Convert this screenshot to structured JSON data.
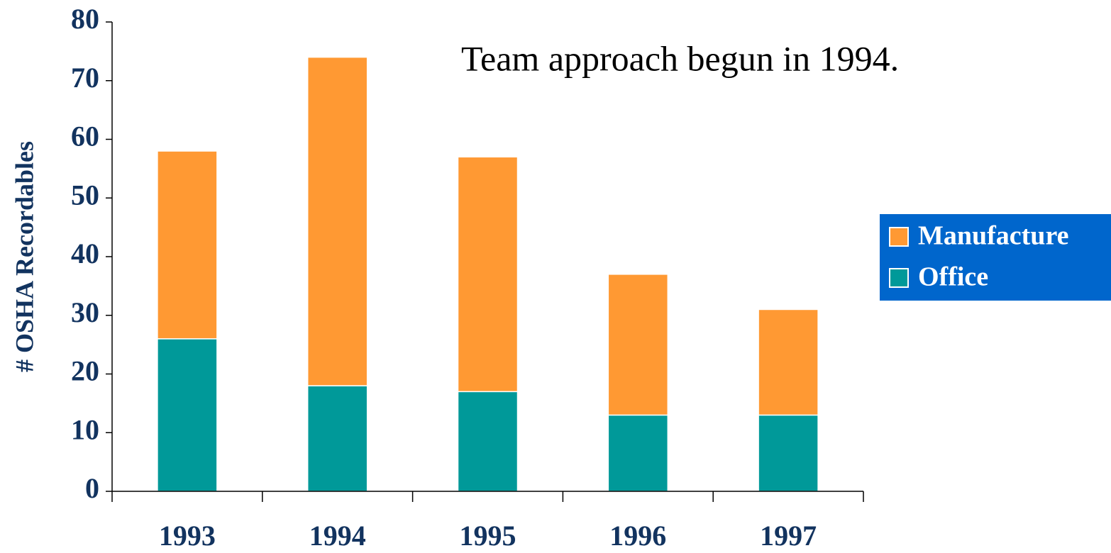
{
  "chart_data": {
    "type": "stacked_bar",
    "annotation": "Team approach begun in 1994.",
    "y_label": "# OSHA Recordables",
    "categories": [
      "1993",
      "1994",
      "1995",
      "1996",
      "1997"
    ],
    "series": [
      {
        "name": "Office",
        "color": "#009999",
        "values": [
          26,
          18,
          17,
          13,
          13
        ]
      },
      {
        "name": "Manufacture",
        "color": "#ff9933",
        "values": [
          32,
          56,
          40,
          24,
          18
        ]
      }
    ],
    "ylim": [
      0,
      80
    ],
    "yticks": [
      0,
      10,
      20,
      30,
      40,
      50,
      60,
      70,
      80
    ],
    "legend": "right",
    "legend_background": "#0066cc"
  }
}
